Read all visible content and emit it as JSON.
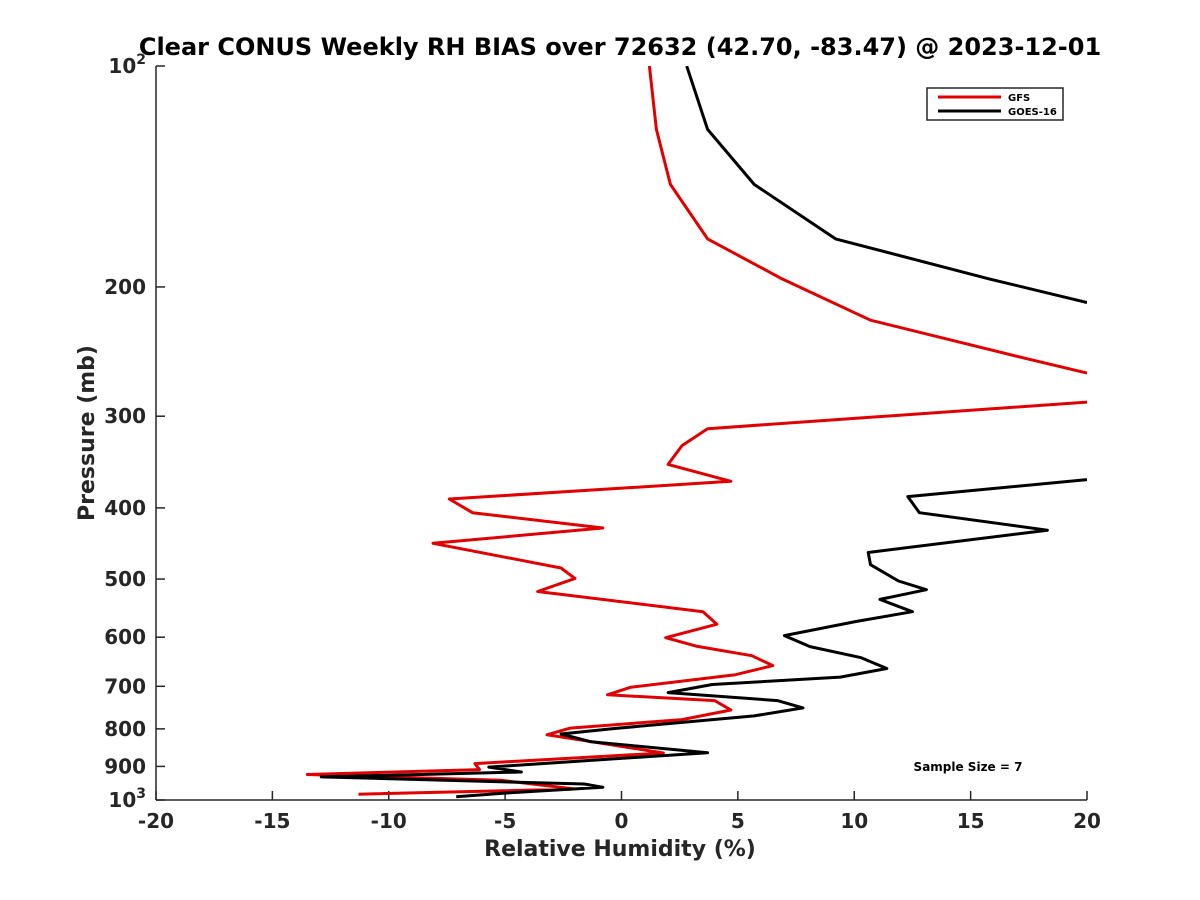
{
  "chart_data": {
    "type": "line",
    "title": "Clear CONUS Weekly RH BIAS over 72632 (42.70, -83.47) @ 2023-12-01",
    "xlabel": "Relative Humidity (%)",
    "ylabel": "Pressure (mb)",
    "xlim": [
      -20,
      20
    ],
    "ylim": [
      100,
      1000
    ],
    "yscale": "log",
    "y_reversed": true,
    "x_ticks": [
      {
        "value": -20,
        "label": "-20"
      },
      {
        "value": -15,
        "label": "-15"
      },
      {
        "value": -10,
        "label": "-10"
      },
      {
        "value": -5,
        "label": "-5"
      },
      {
        "value": 0,
        "label": "0"
      },
      {
        "value": 5,
        "label": "5"
      },
      {
        "value": 10,
        "label": "10"
      },
      {
        "value": 15,
        "label": "15"
      },
      {
        "value": 20,
        "label": "20"
      }
    ],
    "y_ticks": [
      {
        "value": 100,
        "base": "10",
        "sup": "2"
      },
      {
        "value": 200,
        "base": "200",
        "sup": ""
      },
      {
        "value": 300,
        "base": "300",
        "sup": ""
      },
      {
        "value": 400,
        "base": "400",
        "sup": ""
      },
      {
        "value": 500,
        "base": "500",
        "sup": ""
      },
      {
        "value": 600,
        "base": "600",
        "sup": ""
      },
      {
        "value": 700,
        "base": "700",
        "sup": ""
      },
      {
        "value": 800,
        "base": "800",
        "sup": ""
      },
      {
        "value": 900,
        "base": "900",
        "sup": ""
      },
      {
        "value": 1000,
        "base": "10",
        "sup": "3"
      }
    ],
    "grid": false,
    "legend_position": "top-right",
    "annotation": "Sample Size = 7",
    "series": [
      {
        "name": "GFS",
        "color": "#e00000",
        "points": [
          [
            1.2,
            100
          ],
          [
            1.5,
            122
          ],
          [
            2.1,
            145
          ],
          [
            3.7,
            172
          ],
          [
            6.9,
            195
          ],
          [
            10.7,
            222
          ],
          [
            17.3,
            250
          ],
          [
            20.0,
            262
          ],
          [
            null,
            null
          ],
          [
            20.0,
            287
          ],
          [
            3.7,
            312
          ],
          [
            2.6,
            329
          ],
          [
            2.0,
            349
          ],
          [
            4.7,
            368
          ],
          [
            -7.4,
            389
          ],
          [
            -6.4,
            406
          ],
          [
            -0.8,
            426
          ],
          [
            -8.1,
            447
          ],
          [
            -2.6,
            483
          ],
          [
            -2.0,
            499
          ],
          [
            -3.6,
            520
          ],
          [
            3.5,
            554
          ],
          [
            4.1,
            576
          ],
          [
            1.9,
            601
          ],
          [
            3.2,
            617
          ],
          [
            5.6,
            636
          ],
          [
            6.5,
            656
          ],
          [
            4.9,
            675
          ],
          [
            0.4,
            702
          ],
          [
            -0.6,
            719
          ],
          [
            4.0,
            732
          ],
          [
            4.7,
            754
          ],
          [
            2.6,
            777
          ],
          [
            -2.2,
            798
          ],
          [
            -3.2,
            815
          ],
          [
            -1.7,
            829
          ],
          [
            1.8,
            863
          ],
          [
            -6.3,
            892
          ],
          [
            -6.1,
            909
          ],
          [
            -13.5,
            923
          ],
          [
            -5.2,
            940
          ],
          [
            -2.0,
            966
          ],
          [
            -11.3,
            982
          ]
        ]
      },
      {
        "name": "GOES-16",
        "color": "#000000",
        "points": [
          [
            2.8,
            100
          ],
          [
            3.7,
            122
          ],
          [
            5.7,
            145
          ],
          [
            9.2,
            172
          ],
          [
            15.8,
            195
          ],
          [
            20.0,
            210
          ],
          [
            null,
            null
          ],
          [
            20.0,
            366
          ],
          [
            12.3,
            386
          ],
          [
            12.8,
            406
          ],
          [
            18.3,
            429
          ],
          [
            10.6,
            460
          ],
          [
            10.7,
            478
          ],
          [
            11.9,
            503
          ],
          [
            13.1,
            517
          ],
          [
            11.1,
            533
          ],
          [
            12.5,
            554
          ],
          [
            10.1,
            571
          ],
          [
            7.0,
            597
          ],
          [
            8.1,
            618
          ],
          [
            10.3,
            640
          ],
          [
            11.4,
            662
          ],
          [
            9.4,
            680
          ],
          [
            3.9,
            696
          ],
          [
            2.0,
            714
          ],
          [
            6.7,
            732
          ],
          [
            7.8,
            749
          ],
          [
            5.7,
            768
          ],
          [
            -0.3,
            799
          ],
          [
            -2.6,
            813
          ],
          [
            -1.3,
            833
          ],
          [
            3.7,
            862
          ],
          [
            -5.7,
            902
          ],
          [
            -4.3,
            916
          ],
          [
            -12.9,
            930
          ],
          [
            -1.6,
            951
          ],
          [
            -0.8,
            961
          ],
          [
            -5.1,
            979
          ],
          [
            -7.1,
            990
          ]
        ]
      }
    ]
  }
}
